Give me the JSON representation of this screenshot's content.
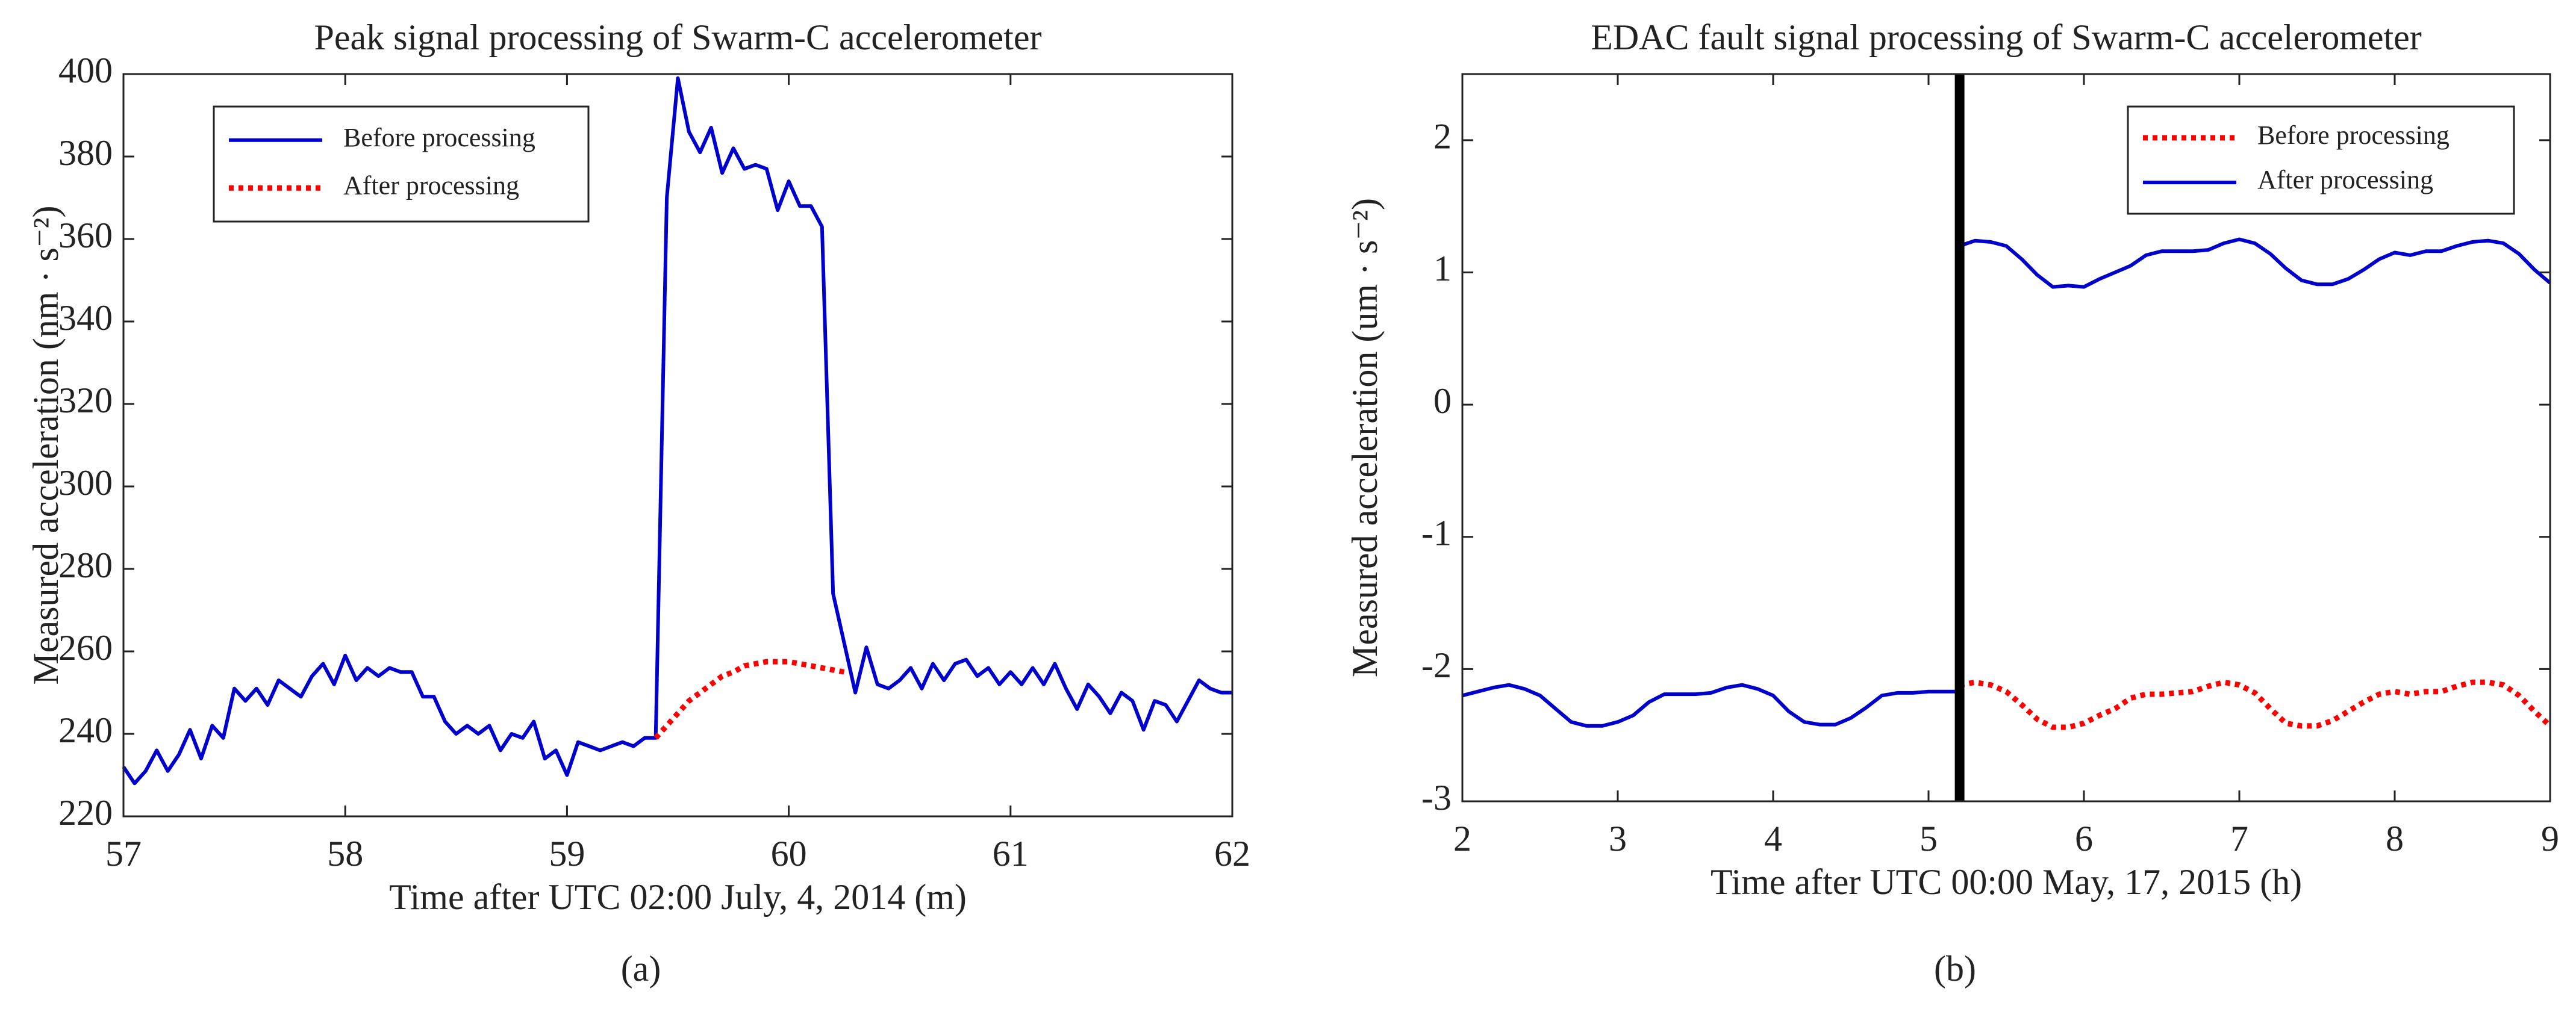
{
  "chart_data": [
    {
      "type": "line",
      "title": "Peak signal processing of Swarm-C accelerometer",
      "x_label": "Time after UTC 02:00 July, 4, 2014 (m)",
      "y_label": "Measured acceleration (nm · s⁻²)",
      "caption": "(a)",
      "xlim": [
        57,
        62
      ],
      "xticks": [
        57,
        58,
        59,
        60,
        61,
        62
      ],
      "ylim": [
        220,
        400
      ],
      "yticks": [
        220,
        240,
        260,
        280,
        300,
        320,
        340,
        360,
        380,
        400
      ],
      "legend": "upper left",
      "series": [
        {
          "name": "Before processing",
          "color": "#0000cc",
          "style": "solid",
          "x": [
            57,
            57.05,
            57.1,
            57.15,
            57.2,
            57.25,
            57.3,
            57.35,
            57.4,
            57.45,
            57.5,
            57.55,
            57.6,
            57.65,
            57.7,
            57.75,
            57.8,
            57.85,
            57.9,
            57.95,
            58,
            58.05,
            58.1,
            58.15,
            58.2,
            58.25,
            58.3,
            58.35,
            58.4,
            58.45,
            58.5,
            58.55,
            58.6,
            58.65,
            58.7,
            58.75,
            58.8,
            58.85,
            58.9,
            58.95,
            59,
            59.05,
            59.1,
            59.15,
            59.2,
            59.25,
            59.3,
            59.35,
            59.4,
            59.45,
            59.5,
            59.55,
            59.6,
            59.65,
            59.7,
            59.75,
            59.8,
            59.85,
            59.9,
            59.95,
            60,
            60.05,
            60.1,
            60.15,
            60.2,
            60.25,
            60.3,
            60.35,
            60.4,
            60.45,
            60.5,
            60.55,
            60.6,
            60.65,
            60.7,
            60.75,
            60.8,
            60.85,
            60.9,
            60.95,
            61,
            61.05,
            61.1,
            61.15,
            61.2,
            61.25,
            61.3,
            61.35,
            61.4,
            61.45,
            61.5,
            61.55,
            61.6,
            61.65,
            61.7,
            61.75,
            61.8,
            61.85,
            61.9,
            61.95,
            62
          ],
          "values": [
            232,
            228,
            231,
            236,
            231,
            235,
            241,
            234,
            242,
            239,
            251,
            248,
            251,
            247,
            253,
            251,
            249,
            254,
            257,
            252,
            259,
            253,
            256,
            254,
            256,
            255,
            255,
            249,
            249,
            243,
            240,
            242,
            240,
            242,
            236,
            240,
            239,
            243,
            234,
            236,
            230,
            238,
            237,
            236,
            237,
            238,
            237,
            239,
            239,
            370,
            399,
            386,
            381,
            387,
            376,
            382,
            377,
            378,
            377,
            367,
            374,
            368,
            368,
            363,
            274,
            262,
            250,
            261,
            252,
            251,
            253,
            256,
            251,
            257,
            253,
            257,
            258,
            254,
            256,
            252,
            255,
            252,
            256,
            252,
            257,
            251,
            246,
            252,
            249,
            245,
            250,
            248,
            241,
            248,
            247,
            243,
            248,
            253,
            251,
            250,
            250
          ]
        },
        {
          "name": "After processing",
          "color": "#ff0000",
          "style": "dotted",
          "x": [
            59.4,
            59.45,
            59.5,
            59.55,
            59.6,
            59.65,
            59.7,
            59.75,
            59.8,
            59.85,
            59.9,
            59.95,
            60,
            60.05,
            60.1,
            60.15,
            60.2,
            60.25
          ],
          "values": [
            239,
            242,
            245,
            248,
            250,
            252,
            254,
            255,
            256.5,
            257,
            257.5,
            257.5,
            257.5,
            257,
            256.5,
            256,
            255.5,
            255
          ]
        }
      ]
    },
    {
      "type": "line",
      "title": "EDAC fault signal processing of Swarm-C accelerometer",
      "x_label": "Time after UTC 00:00 May, 17, 2015 (h)",
      "y_label": "Measured acceleration (um · s⁻²)",
      "caption": "(b)",
      "xlim": [
        2,
        9
      ],
      "xticks": [
        2,
        3,
        4,
        5,
        6,
        7,
        8,
        9
      ],
      "ylim": [
        -3,
        2.5
      ],
      "yticks": [
        -3,
        -2,
        -1,
        0,
        1,
        2
      ],
      "legend": "upper right",
      "vline": 5.2,
      "series": [
        {
          "name": "Before processing",
          "color": "#ff0000",
          "style": "dotted",
          "x": [
            5.2,
            5.3,
            5.4,
            5.5,
            5.6,
            5.7,
            5.8,
            5.9,
            6,
            6.1,
            6.2,
            6.3,
            6.4,
            6.5,
            6.6,
            6.7,
            6.8,
            6.9,
            7,
            7.1,
            7.2,
            7.3,
            7.4,
            7.5,
            7.6,
            7.7,
            7.8,
            7.9,
            8,
            8.1,
            8.2,
            8.3,
            8.4,
            8.5,
            8.6,
            8.7,
            8.8,
            8.9,
            9
          ],
          "values": [
            -2.12,
            -2.1,
            -2.12,
            -2.17,
            -2.27,
            -2.38,
            -2.44,
            -2.44,
            -2.41,
            -2.35,
            -2.3,
            -2.22,
            -2.19,
            -2.19,
            -2.18,
            -2.17,
            -2.13,
            -2.1,
            -2.12,
            -2.18,
            -2.3,
            -2.41,
            -2.43,
            -2.43,
            -2.39,
            -2.32,
            -2.25,
            -2.19,
            -2.17,
            -2.19,
            -2.17,
            -2.17,
            -2.13,
            -2.1,
            -2.1,
            -2.12,
            -2.2,
            -2.32,
            -2.43
          ]
        },
        {
          "name": "After processing",
          "color": "#0000cc",
          "style": "solid",
          "x": [
            2,
            2.1,
            2.2,
            2.3,
            2.4,
            2.5,
            2.6,
            2.7,
            2.8,
            2.9,
            3,
            3.1,
            3.2,
            3.3,
            3.4,
            3.5,
            3.6,
            3.7,
            3.8,
            3.9,
            4,
            4.1,
            4.2,
            4.3,
            4.4,
            4.5,
            4.6,
            4.7,
            4.8,
            4.9,
            5,
            5.1,
            5.2,
            5.2,
            5.3,
            5.4,
            5.5,
            5.6,
            5.7,
            5.8,
            5.9,
            6,
            6.1,
            6.2,
            6.3,
            6.4,
            6.5,
            6.6,
            6.7,
            6.8,
            6.9,
            7,
            7.1,
            7.2,
            7.3,
            7.4,
            7.5,
            7.6,
            7.7,
            7.8,
            7.9,
            8,
            8.1,
            8.2,
            8.3,
            8.4,
            8.5,
            8.6,
            8.7,
            8.8,
            8.9,
            9
          ],
          "values": [
            -2.2,
            -2.17,
            -2.14,
            -2.12,
            -2.15,
            -2.2,
            -2.3,
            -2.4,
            -2.43,
            -2.43,
            -2.4,
            -2.35,
            -2.25,
            -2.19,
            -2.19,
            -2.19,
            -2.18,
            -2.14,
            -2.12,
            -2.15,
            -2.2,
            -2.32,
            -2.4,
            -2.42,
            -2.42,
            -2.37,
            -2.29,
            -2.2,
            -2.18,
            -2.18,
            -2.17,
            -2.17,
            -2.17,
            1.2,
            1.24,
            1.23,
            1.2,
            1.1,
            0.98,
            0.89,
            0.9,
            0.89,
            0.95,
            1.0,
            1.05,
            1.13,
            1.16,
            1.16,
            1.16,
            1.17,
            1.22,
            1.25,
            1.22,
            1.14,
            1.03,
            0.94,
            0.91,
            0.91,
            0.95,
            1.02,
            1.1,
            1.15,
            1.13,
            1.16,
            1.16,
            1.2,
            1.23,
            1.24,
            1.22,
            1.14,
            1.02,
            0.92
          ]
        }
      ]
    }
  ]
}
